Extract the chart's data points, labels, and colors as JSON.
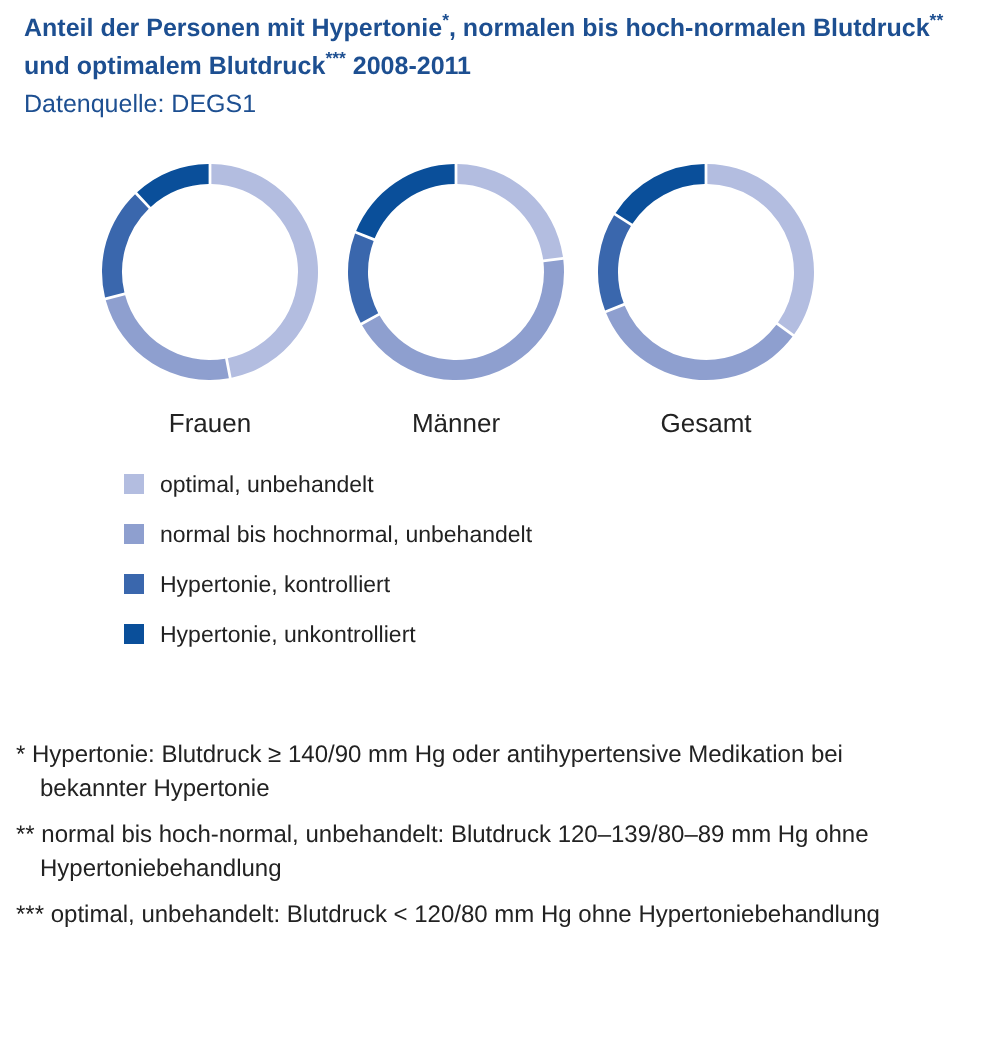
{
  "chart_data": [
    {
      "type": "donut",
      "title": "Anteil der Personen mit Hypertonie$^{*}$, normalen bis hoch-normalen Blutdruck$^{**}$ und optimalem Blutdruck$^{***}$ 2008-2011",
      "subtitle": "Datenquelle: DEGS1",
      "xlabel": "Frauen",
      "legend": "bottom",
      "categories": [
        "optimal, unbehandelt",
        "normal bis hochnormal, unbehandelt",
        "Hypertonie, kontrolliert",
        "Hypertonie, unkontrolliert"
      ],
      "values": [
        47,
        24,
        17,
        12
      ],
      "colors": [
        "#b3bde0",
        "#8e9fcf",
        "#3a67ad",
        "#0a4f9a"
      ],
      "annotations": [
        "* Hypertonie: Blutdruck ≥ 140/90 mm Hg oder antihypertensive Medikation bei bekannter Hypertonie",
        "** normal bis hoch-normal, unbehandelt: Blutdruck 120–139/80–89 mm Hg ohne Hypertoniebehandlung",
        "*** optimal, unbehandelt: Blutdruck < 120/80 mm Hg ohne Hypertoniebehandlung"
      ]
    },
    {
      "type": "donut",
      "xlabel": "Männer",
      "categories": [
        null,
        null,
        null,
        null
      ],
      "values": [
        23,
        44,
        14,
        19
      ],
      "colors": [
        "#b3bde0",
        "#8e9fcf",
        "#3a67ad",
        "#0a4f9a"
      ]
    },
    {
      "type": "donut",
      "xlabel": "Gesamt",
      "categories": [
        null,
        null,
        null,
        null
      ],
      "values": [
        35,
        34,
        15,
        16
      ],
      "colors": [
        "#b3bde0",
        "#8e9fcf",
        "#3a67ad",
        "#0a4f9a"
      ]
    }
  ]
}
